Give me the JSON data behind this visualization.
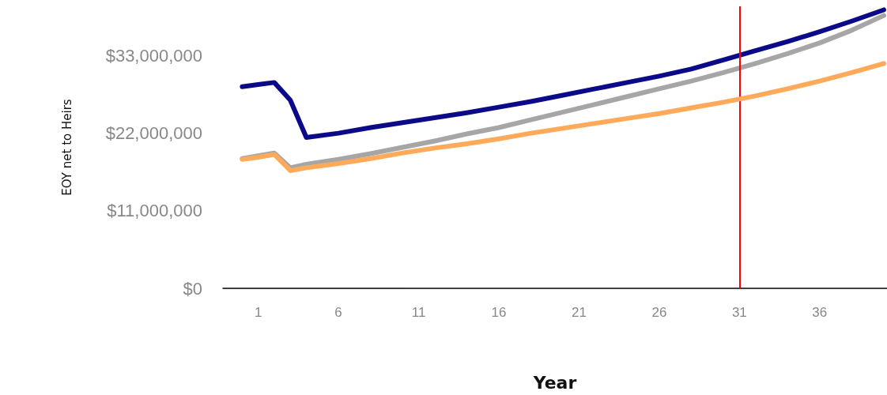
{
  "chart_data": {
    "type": "line",
    "xlabel": "Year",
    "ylabel": "EOY net to Heirs",
    "x": [
      0,
      1,
      2,
      3,
      4,
      6,
      8,
      10,
      12,
      14,
      16,
      18,
      20,
      22,
      24,
      26,
      28,
      30,
      32,
      34,
      36,
      38,
      40
    ],
    "series": [
      {
        "color": "#0b0b8a",
        "values": [
          28600000,
          28900000,
          29200000,
          26700000,
          21400000,
          22000000,
          22800000,
          23500000,
          24200000,
          24900000,
          25700000,
          26500000,
          27400000,
          28300000,
          29200000,
          30100000,
          31100000,
          32400000,
          33700000,
          35000000,
          36400000,
          37900000,
          39500000
        ]
      },
      {
        "color": "#a6a6a6",
        "values": [
          18400000,
          18800000,
          19200000,
          17100000,
          17600000,
          18300000,
          19100000,
          20000000,
          20900000,
          21900000,
          22800000,
          23900000,
          25000000,
          26100000,
          27200000,
          28300000,
          29400000,
          30600000,
          31900000,
          33300000,
          34800000,
          36600000,
          38700000
        ]
      },
      {
        "color": "#ffaa5a",
        "values": [
          18300000,
          18600000,
          19000000,
          16700000,
          17100000,
          17700000,
          18400000,
          19200000,
          19900000,
          20500000,
          21200000,
          22000000,
          22700000,
          23400000,
          24100000,
          24800000,
          25600000,
          26400000,
          27300000,
          28300000,
          29400000,
          30600000,
          31900000
        ]
      }
    ],
    "xlim": [
      -1.2,
      40.2
    ],
    "xticks": [
      1,
      6,
      11,
      16,
      21,
      26,
      31,
      36
    ],
    "ylim": [
      0,
      40000000
    ],
    "yticks": [
      {
        "value": 0,
        "label": "$0"
      },
      {
        "value": 11000000,
        "label": "$11,000,000"
      },
      {
        "value": 22000000,
        "label": "$22,000,000"
      },
      {
        "value": 33000000,
        "label": "$33,000,000"
      }
    ],
    "ref_lines": [
      {
        "axis": "x",
        "value": 31,
        "color": "#ff0000"
      }
    ],
    "grid": false,
    "marker": "none",
    "line_style": "solid"
  }
}
